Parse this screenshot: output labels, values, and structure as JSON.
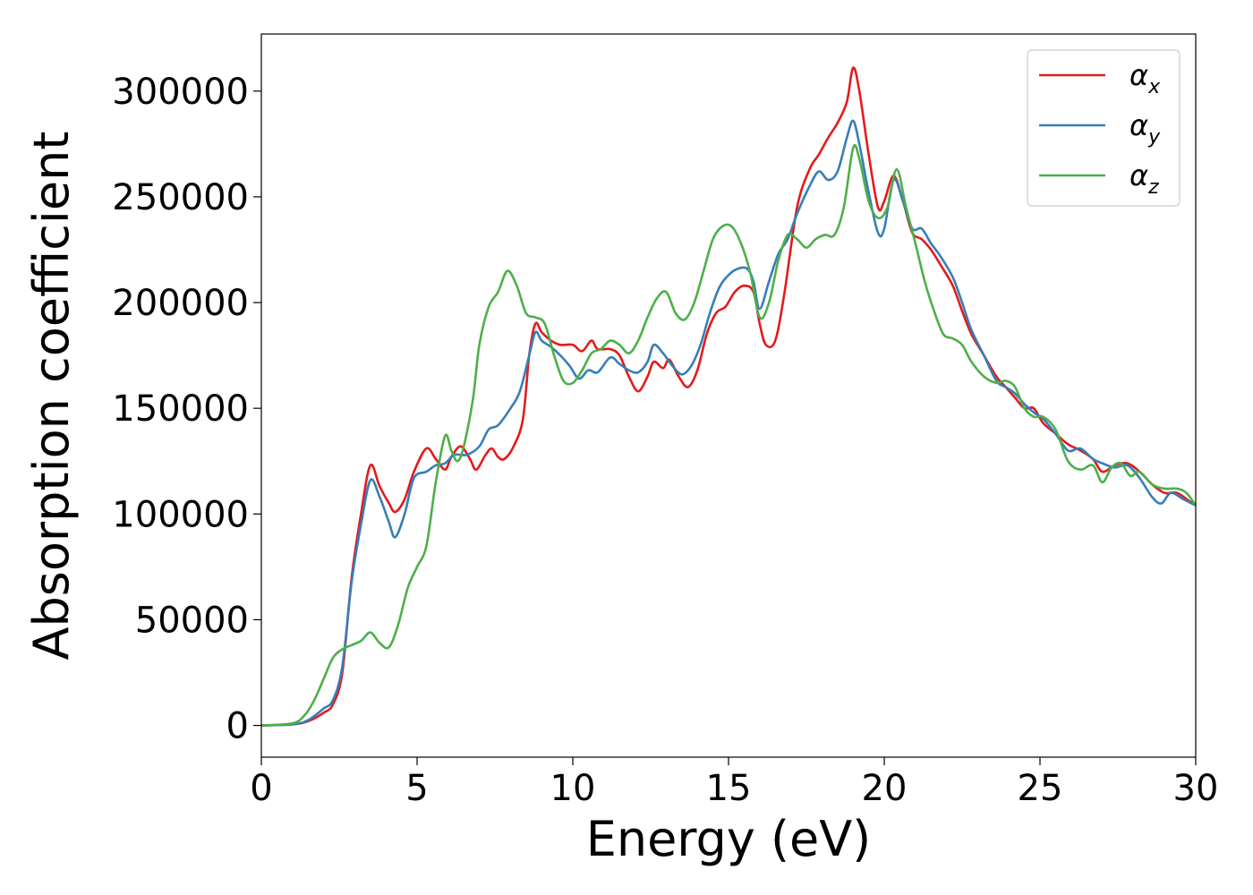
{
  "chart_data": {
    "type": "line",
    "title": "",
    "xlabel": "Energy (eV)",
    "ylabel": "Absorption coefficient",
    "xlim": [
      0,
      30
    ],
    "ylim": [
      -15000,
      327000
    ],
    "xticks": [
      0,
      5,
      10,
      15,
      20,
      25,
      30
    ],
    "yticks": [
      0,
      50000,
      100000,
      150000,
      200000,
      250000,
      300000
    ],
    "xtick_labels": [
      "0",
      "5",
      "10",
      "15",
      "20",
      "25",
      "30"
    ],
    "ytick_labels": [
      "0",
      "50000",
      "100000",
      "150000",
      "200000",
      "250000",
      "300000"
    ],
    "grid": false,
    "legend_position": "top-right",
    "series": [
      {
        "name": "α",
        "subscript": "x",
        "color": "#e41a1c",
        "points": [
          [
            0,
            0
          ],
          [
            1,
            500
          ],
          [
            1.5,
            2000
          ],
          [
            2,
            6000
          ],
          [
            2.3,
            10000
          ],
          [
            2.6,
            25000
          ],
          [
            2.9,
            70000
          ],
          [
            3.2,
            100000
          ],
          [
            3.5,
            123000
          ],
          [
            3.8,
            113000
          ],
          [
            4.1,
            105000
          ],
          [
            4.3,
            101000
          ],
          [
            4.6,
            107000
          ],
          [
            4.9,
            120000
          ],
          [
            5.3,
            131000
          ],
          [
            5.6,
            126000
          ],
          [
            5.9,
            121000
          ],
          [
            6.1,
            127000
          ],
          [
            6.4,
            132000
          ],
          [
            6.7,
            126000
          ],
          [
            6.9,
            121000
          ],
          [
            7.2,
            128000
          ],
          [
            7.4,
            131000
          ],
          [
            7.6,
            127000
          ],
          [
            7.8,
            126000
          ],
          [
            8.1,
            132000
          ],
          [
            8.4,
            145000
          ],
          [
            8.6,
            175000
          ],
          [
            8.8,
            190000
          ],
          [
            9.0,
            186000
          ],
          [
            9.3,
            182000
          ],
          [
            9.6,
            180000
          ],
          [
            10.0,
            180000
          ],
          [
            10.3,
            177000
          ],
          [
            10.6,
            182000
          ],
          [
            10.8,
            178000
          ],
          [
            11.2,
            178000
          ],
          [
            11.5,
            175000
          ],
          [
            11.8,
            165000
          ],
          [
            12.1,
            158000
          ],
          [
            12.4,
            165000
          ],
          [
            12.6,
            172000
          ],
          [
            12.9,
            169000
          ],
          [
            13.1,
            173000
          ],
          [
            13.4,
            165000
          ],
          [
            13.7,
            160000
          ],
          [
            14.0,
            168000
          ],
          [
            14.3,
            185000
          ],
          [
            14.6,
            195000
          ],
          [
            14.9,
            198000
          ],
          [
            15.2,
            205000
          ],
          [
            15.5,
            208000
          ],
          [
            15.8,
            205000
          ],
          [
            16.0,
            190000
          ],
          [
            16.2,
            180000
          ],
          [
            16.5,
            182000
          ],
          [
            16.8,
            205000
          ],
          [
            17.2,
            245000
          ],
          [
            17.6,
            263000
          ],
          [
            17.9,
            270000
          ],
          [
            18.2,
            278000
          ],
          [
            18.5,
            285000
          ],
          [
            18.8,
            295000
          ],
          [
            19.0,
            311000
          ],
          [
            19.2,
            300000
          ],
          [
            19.5,
            270000
          ],
          [
            19.8,
            245000
          ],
          [
            20.0,
            248000
          ],
          [
            20.3,
            260000
          ],
          [
            20.6,
            248000
          ],
          [
            20.9,
            233000
          ],
          [
            21.2,
            230000
          ],
          [
            21.5,
            225000
          ],
          [
            21.8,
            218000
          ],
          [
            22.2,
            208000
          ],
          [
            22.5,
            196000
          ],
          [
            22.8,
            185000
          ],
          [
            23.2,
            175000
          ],
          [
            23.6,
            165000
          ],
          [
            23.9,
            160000
          ],
          [
            24.2,
            155000
          ],
          [
            24.5,
            150000
          ],
          [
            24.8,
            150000
          ],
          [
            25.1,
            143000
          ],
          [
            25.5,
            138000
          ],
          [
            25.9,
            133000
          ],
          [
            26.3,
            130000
          ],
          [
            26.7,
            126000
          ],
          [
            27.0,
            120000
          ],
          [
            27.4,
            123000
          ],
          [
            27.8,
            124000
          ],
          [
            28.2,
            120000
          ],
          [
            28.6,
            114000
          ],
          [
            29.0,
            110000
          ],
          [
            29.4,
            110000
          ],
          [
            29.8,
            106000
          ],
          [
            30.0,
            104000
          ]
        ]
      },
      {
        "name": "α",
        "subscript": "y",
        "color": "#377eb8",
        "points": [
          [
            0,
            0
          ],
          [
            1,
            500
          ],
          [
            1.5,
            2500
          ],
          [
            2,
            8000
          ],
          [
            2.3,
            12000
          ],
          [
            2.6,
            28000
          ],
          [
            2.9,
            68000
          ],
          [
            3.2,
            95000
          ],
          [
            3.5,
            116000
          ],
          [
            3.8,
            108000
          ],
          [
            4.1,
            96000
          ],
          [
            4.3,
            89000
          ],
          [
            4.6,
            100000
          ],
          [
            4.9,
            117000
          ],
          [
            5.3,
            120000
          ],
          [
            5.6,
            123000
          ],
          [
            5.9,
            124000
          ],
          [
            6.2,
            128000
          ],
          [
            6.6,
            128000
          ],
          [
            7.0,
            132000
          ],
          [
            7.3,
            140000
          ],
          [
            7.6,
            142000
          ],
          [
            8.0,
            150000
          ],
          [
            8.3,
            158000
          ],
          [
            8.6,
            175000
          ],
          [
            8.8,
            186000
          ],
          [
            9.0,
            182000
          ],
          [
            9.3,
            179000
          ],
          [
            9.6,
            175000
          ],
          [
            9.9,
            170000
          ],
          [
            10.2,
            164000
          ],
          [
            10.5,
            168000
          ],
          [
            10.8,
            167000
          ],
          [
            11.2,
            174000
          ],
          [
            11.5,
            171000
          ],
          [
            11.8,
            168000
          ],
          [
            12.1,
            167000
          ],
          [
            12.4,
            172000
          ],
          [
            12.6,
            180000
          ],
          [
            12.9,
            176000
          ],
          [
            13.2,
            170000
          ],
          [
            13.5,
            166000
          ],
          [
            13.8,
            170000
          ],
          [
            14.1,
            180000
          ],
          [
            14.4,
            195000
          ],
          [
            14.7,
            207000
          ],
          [
            15.0,
            213000
          ],
          [
            15.3,
            216000
          ],
          [
            15.6,
            216000
          ],
          [
            15.8,
            210000
          ],
          [
            16.0,
            197000
          ],
          [
            16.3,
            210000
          ],
          [
            16.6,
            223000
          ],
          [
            16.9,
            230000
          ],
          [
            17.2,
            242000
          ],
          [
            17.6,
            255000
          ],
          [
            17.9,
            262000
          ],
          [
            18.2,
            258000
          ],
          [
            18.5,
            262000
          ],
          [
            18.8,
            278000
          ],
          [
            19.0,
            286000
          ],
          [
            19.2,
            275000
          ],
          [
            19.5,
            252000
          ],
          [
            19.8,
            233000
          ],
          [
            20.0,
            235000
          ],
          [
            20.3,
            258000
          ],
          [
            20.6,
            248000
          ],
          [
            20.9,
            235000
          ],
          [
            21.2,
            235000
          ],
          [
            21.5,
            228000
          ],
          [
            21.8,
            222000
          ],
          [
            22.2,
            212000
          ],
          [
            22.5,
            200000
          ],
          [
            22.8,
            187000
          ],
          [
            23.2,
            175000
          ],
          [
            23.6,
            163000
          ],
          [
            23.9,
            160000
          ],
          [
            24.2,
            157000
          ],
          [
            24.5,
            152000
          ],
          [
            24.8,
            148000
          ],
          [
            25.1,
            145000
          ],
          [
            25.5,
            138000
          ],
          [
            25.9,
            130000
          ],
          [
            26.3,
            131000
          ],
          [
            26.7,
            126000
          ],
          [
            27.0,
            124000
          ],
          [
            27.4,
            122000
          ],
          [
            27.8,
            123000
          ],
          [
            28.2,
            117000
          ],
          [
            28.6,
            108000
          ],
          [
            28.9,
            105000
          ],
          [
            29.2,
            110000
          ],
          [
            29.6,
            107000
          ],
          [
            30.0,
            104000
          ]
        ]
      },
      {
        "name": "α",
        "subscript": "z",
        "color": "#4daf4a",
        "points": [
          [
            0,
            0
          ],
          [
            1,
            1000
          ],
          [
            1.4,
            5000
          ],
          [
            1.7,
            12000
          ],
          [
            2.0,
            22000
          ],
          [
            2.3,
            32000
          ],
          [
            2.6,
            36000
          ],
          [
            2.9,
            38000
          ],
          [
            3.2,
            40000
          ],
          [
            3.5,
            44000
          ],
          [
            3.8,
            39000
          ],
          [
            4.1,
            37000
          ],
          [
            4.4,
            48000
          ],
          [
            4.7,
            65000
          ],
          [
            5.0,
            75000
          ],
          [
            5.3,
            85000
          ],
          [
            5.6,
            115000
          ],
          [
            5.9,
            137000
          ],
          [
            6.1,
            130000
          ],
          [
            6.3,
            125000
          ],
          [
            6.5,
            132000
          ],
          [
            6.8,
            155000
          ],
          [
            7.0,
            180000
          ],
          [
            7.3,
            198000
          ],
          [
            7.6,
            205000
          ],
          [
            7.9,
            215000
          ],
          [
            8.2,
            208000
          ],
          [
            8.5,
            195000
          ],
          [
            8.8,
            193000
          ],
          [
            9.1,
            190000
          ],
          [
            9.4,
            175000
          ],
          [
            9.7,
            163000
          ],
          [
            10.0,
            162000
          ],
          [
            10.3,
            168000
          ],
          [
            10.6,
            176000
          ],
          [
            10.9,
            178000
          ],
          [
            11.2,
            182000
          ],
          [
            11.5,
            180000
          ],
          [
            11.8,
            176000
          ],
          [
            12.1,
            182000
          ],
          [
            12.4,
            193000
          ],
          [
            12.7,
            202000
          ],
          [
            13.0,
            205000
          ],
          [
            13.3,
            195000
          ],
          [
            13.6,
            192000
          ],
          [
            13.9,
            200000
          ],
          [
            14.2,
            215000
          ],
          [
            14.5,
            230000
          ],
          [
            14.8,
            236000
          ],
          [
            15.1,
            236000
          ],
          [
            15.4,
            228000
          ],
          [
            15.7,
            214000
          ],
          [
            16.0,
            193000
          ],
          [
            16.3,
            200000
          ],
          [
            16.6,
            220000
          ],
          [
            16.9,
            232000
          ],
          [
            17.2,
            230000
          ],
          [
            17.5,
            226000
          ],
          [
            17.8,
            230000
          ],
          [
            18.1,
            232000
          ],
          [
            18.4,
            232000
          ],
          [
            18.7,
            245000
          ],
          [
            19.0,
            273000
          ],
          [
            19.2,
            268000
          ],
          [
            19.5,
            248000
          ],
          [
            19.8,
            240000
          ],
          [
            20.1,
            245000
          ],
          [
            20.4,
            263000
          ],
          [
            20.7,
            245000
          ],
          [
            21.0,
            228000
          ],
          [
            21.3,
            210000
          ],
          [
            21.6,
            196000
          ],
          [
            21.9,
            185000
          ],
          [
            22.2,
            183000
          ],
          [
            22.5,
            180000
          ],
          [
            22.8,
            172000
          ],
          [
            23.2,
            165000
          ],
          [
            23.6,
            162000
          ],
          [
            23.9,
            163000
          ],
          [
            24.2,
            160000
          ],
          [
            24.5,
            150000
          ],
          [
            24.8,
            146000
          ],
          [
            25.1,
            146000
          ],
          [
            25.5,
            140000
          ],
          [
            25.9,
            125000
          ],
          [
            26.3,
            121000
          ],
          [
            26.7,
            123000
          ],
          [
            27.0,
            115000
          ],
          [
            27.3,
            122000
          ],
          [
            27.6,
            124000
          ],
          [
            27.9,
            118000
          ],
          [
            28.2,
            120000
          ],
          [
            28.6,
            114000
          ],
          [
            29.0,
            112000
          ],
          [
            29.4,
            112000
          ],
          [
            29.7,
            110000
          ],
          [
            30.0,
            104000
          ]
        ]
      }
    ]
  }
}
